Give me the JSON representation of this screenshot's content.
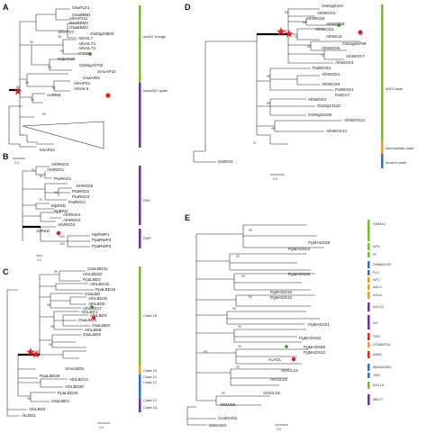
{
  "figure": {
    "panels": {
      "A": {
        "label": "A",
        "leaves": [
          "OsaPLE1",
          "OsaBBM1",
          "AthAP211",
          "OsaBBM2",
          "OsaBBM3",
          "AthAP27",
          "AthAIL7",
          "Os03g19900",
          "AthAIL72",
          "AthAIL73",
          "AthBBM",
          "PabAP29",
          "Os06g44750",
          "SmoAP22",
          "OsaAIN3",
          "AthAP21",
          "AthAIL5",
          "AcBBM",
          "K5AP22"
        ],
        "bootstraps": [
          "99",
          "99",
          "98",
          "99",
          "99",
          "99",
          "99",
          "99",
          "99"
        ],
        "clades": [
          "euANT lineage",
          "basalANT grade"
        ],
        "scale": "0.5"
      },
      "B": {
        "label": "B",
        "leaves": [
          "AthRKD2",
          "AthRKD1",
          "PtaRKD1",
          "AthRKD5",
          "PtaRKD2",
          "PtaRKD3",
          "PatRKD1",
          "MpRKD",
          "PpRKD",
          "AthRKD4",
          "AthRKD3",
          "AthRKD2",
          "AcRKD",
          "MpRWP1",
          "PpaRWP4",
          "PpaRWP3"
        ],
        "bootstraps": [
          "91",
          "81",
          "98",
          "75",
          "100",
          "100"
        ],
        "clades": [
          "RKD",
          "RWP"
        ],
        "scale": "0.1"
      },
      "C": {
        "label": "C",
        "leaves": [
          "OsaLBD31",
          "AthLBD29",
          "PpaLBD3",
          "AthLBD18",
          "PpaLBD15",
          "OsaLBD",
          "AthLBD16",
          "AthLBD5",
          "AthLBD17",
          "AthLBD1",
          "AthLBD4",
          "OsaLBD5",
          "OsaLBD6",
          "AthLBD8",
          "OsaLBD5",
          "SmoLBD5",
          "PpaLBD28",
          "AthLBD14",
          "AthLBD20",
          "PpaLBD26",
          "OsaLBD2",
          "AthLBD2",
          "AtLBD1"
        ],
        "bootstraps": [
          "99",
          "99",
          "99",
          "99",
          "99",
          "99"
        ],
        "clades": [
          "Class 1B",
          "Class 1D",
          "Class 1C",
          "Class 1C",
          "Class 1C",
          "Class 1A"
        ],
        "scale": "0.5"
      },
      "D": {
        "label": "D",
        "leaves": [
          "Os01g0310",
          "AthWOX2",
          "AthWOX8",
          "AthWOX9",
          "AthWOX3",
          "AthWUS",
          "Os04g56780",
          "AthWOX5",
          "AthWOX7",
          "AthWOX4",
          "PatWOX1",
          "AthWOX1",
          "AthWOX6",
          "PatWOX1",
          "PatOA7",
          "AthWOX2",
          "Os10g21120",
          "Os05g03180",
          "AthWOX13",
          "AthWOX14",
          "OsWOX"
        ],
        "bootstraps": [
          "99",
          "99",
          "88",
          "75",
          "80",
          "71",
          "98",
          "99",
          "99",
          "97"
        ],
        "clades": [
          "WUS clade",
          "Intermediate clade",
          "Ancient clade"
        ],
        "scale": "0.5"
      },
      "E": {
        "label": "E",
        "leaves": [
          "PgMADS29",
          "PgMADS23",
          "PgMADS19",
          "PgMADS15",
          "PgMADS10",
          "PgMADS21",
          "PgMADS33",
          "PgMADS59",
          "PgMADS32",
          "AcAGL",
          "AtAGL18",
          "AtAGL15",
          "AtAGL16",
          "XtMADS",
          "VcaMADS",
          "MsMADS"
        ],
        "bootstraps": [
          "99",
          "99",
          "99",
          "92",
          "99",
          "99",
          "99",
          "99",
          "99",
          "99"
        ],
        "clades": [
          "GMM13",
          "AP3",
          "PI",
          "OsMADS32",
          "FLC",
          "AP1",
          "AGL2",
          "AGL6",
          "AGL12",
          "AG",
          "TM3",
          "STMADS11",
          "ANR1",
          "MpMADS51",
          "Tt45",
          "AGL15",
          "MIKC*"
        ],
        "scale": "0.5"
      }
    },
    "colors": {
      "green": "#7ab832",
      "purple": "#6b2fa0",
      "orange": "#f39a1f",
      "blue": "#2f6fcc",
      "red": "#d9251d",
      "star": "#d9251d"
    }
  }
}
